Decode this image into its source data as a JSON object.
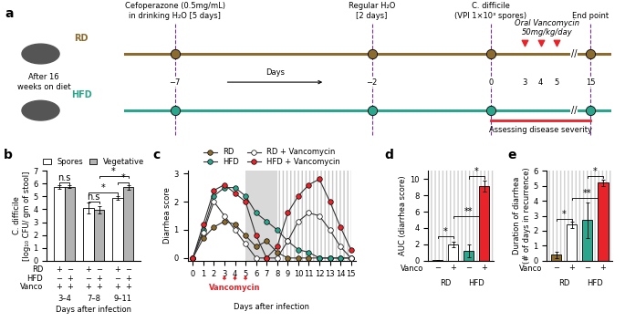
{
  "panel_a": {
    "label": "a",
    "groups": [
      {
        "name": "RD",
        "color": "#8c6b2f"
      },
      {
        "name": "HFD",
        "color": "#2ca58d"
      }
    ],
    "diet_note": "After 16\nweeks on diet",
    "timeline": [
      {
        "day": -7,
        "label": "−7"
      },
      {
        "day": -2,
        "label": "−2"
      },
      {
        "day": 0,
        "label": "0"
      },
      {
        "day": 3,
        "label": "3"
      },
      {
        "day": 4,
        "label": "4"
      },
      {
        "day": 5,
        "label": "5"
      },
      {
        "day": 15,
        "label": "15"
      }
    ],
    "milestones": [
      {
        "day": -7,
        "text": "Cefoperazone (0.5mg/mL)\nin drinking H₂O [5 days]"
      },
      {
        "day": -2,
        "text": "Regular H₂O\n[2 days]"
      },
      {
        "day": 0,
        "text": "C. difficile\n(VPI 1×10³ spores)"
      },
      {
        "day": 15,
        "text": "End point"
      }
    ],
    "treatment": {
      "text": "Oral Vancomycin\n50mg/kg/day",
      "days": [
        3,
        4,
        5
      ],
      "color": "#e8232a"
    },
    "axis_label": "Days",
    "break_mark": "//",
    "severity_text": "Assessing disease severity",
    "severity_color": "#e8232a"
  },
  "chart_data": [
    {
      "panel": "b",
      "type": "bar",
      "ylabel": "C. difficile\n[log₁₀ CFU/ gm of stool]",
      "xlabel": "Days after infection",
      "categories": [
        "3–4",
        "7–8",
        "9–11"
      ],
      "series": [
        {
          "name": "Spores",
          "color": "#ffffff",
          "values": [
            5.75,
            4.1,
            4.9
          ],
          "errors": [
            0.15,
            0.4,
            0.15
          ]
        },
        {
          "name": "Vegetative",
          "color": "#b3b3b3",
          "values": [
            5.75,
            3.95,
            5.7
          ],
          "errors": [
            0.1,
            0.3,
            0.15
          ]
        }
      ],
      "ylim": [
        0,
        7
      ],
      "yticks": [
        0,
        1,
        2,
        3,
        4,
        5,
        6,
        7
      ],
      "legend": "lower center",
      "conditions": [
        {
          "name": "RD",
          "values": [
            [
              "+",
              "−"
            ],
            [
              "+",
              "−"
            ],
            [
              "+",
              "−"
            ]
          ]
        },
        {
          "name": "HFD",
          "values": [
            [
              "−",
              "+"
            ],
            [
              "−",
              "+"
            ],
            [
              "−",
              "+"
            ]
          ]
        },
        {
          "name": "Vanco",
          "values": [
            [
              "+",
              "+"
            ],
            [
              "+",
              "+"
            ],
            [
              "+",
              "+"
            ]
          ]
        }
      ],
      "significance": [
        {
          "text": "n.s",
          "bars": [
            [
              0,
              0
            ],
            [
              0,
              1
            ]
          ],
          "y": 6.1
        },
        {
          "text": "n.s",
          "bars": [
            [
              1,
              0
            ],
            [
              1,
              1
            ]
          ],
          "y": 4.6
        },
        {
          "text": "*",
          "bars": [
            [
              1,
              0
            ],
            [
              2,
              0
            ]
          ],
          "y": 5.3
        },
        {
          "text": "*",
          "bars": [
            [
              2,
              0
            ],
            [
              2,
              1
            ]
          ],
          "y": 6.1
        },
        {
          "text": "*",
          "bars": [
            [
              1,
              1
            ],
            [
              2,
              1
            ]
          ],
          "y": 6.6
        }
      ]
    },
    {
      "panel": "c",
      "type": "line",
      "ylabel": "Diarrhea score",
      "xlabel": "Days after infection",
      "x": [
        0,
        1,
        2,
        3,
        4,
        5,
        6,
        7,
        8,
        9,
        10,
        11,
        12,
        13,
        14,
        15
      ],
      "series": [
        {
          "name": "RD",
          "color": "#8c6b2f",
          "marker": "o",
          "values": [
            0,
            0.7,
            1.1,
            1.3,
            1.2,
            0.8,
            0.4,
            0.6,
            0.2,
            0,
            0,
            0,
            0,
            0,
            0,
            0
          ]
        },
        {
          "name": "HFD",
          "color": "#2ca58d",
          "marker": "o",
          "values": [
            0,
            1.0,
            2.2,
            2.5,
            2.5,
            2.2,
            1.6,
            1.3,
            1.0,
            0.6,
            0.3,
            0.2,
            0,
            0,
            0,
            0
          ]
        },
        {
          "name": "RD + Vancomycin",
          "color": "#ffffff",
          "marker": "o",
          "values": [
            0,
            0.9,
            2.0,
            1.5,
            1.0,
            0.5,
            0,
            0,
            0,
            0.6,
            1.3,
            1.6,
            1.5,
            1.0,
            0.4,
            0
          ]
        },
        {
          "name": "HFD + Vancomycin",
          "color": "#e8232a",
          "marker": "o",
          "values": [
            0,
            1.2,
            2.4,
            2.6,
            2.3,
            2.0,
            0.8,
            0,
            0.4,
            1.6,
            2.2,
            2.6,
            2.8,
            2.0,
            1.1,
            0.3
          ]
        }
      ],
      "xlim": [
        -0.5,
        15.5
      ],
      "xticks": [
        0,
        1,
        2,
        3,
        4,
        5,
        6,
        7,
        8,
        9,
        10,
        11,
        12,
        13,
        14,
        15
      ],
      "ylim": [
        -0.1,
        3.1
      ],
      "yticks": [
        0,
        1,
        2,
        3
      ],
      "legend": "lower center",
      "shaded_span": [
        5,
        8
      ],
      "hatched_span": [
        8,
        15
      ],
      "treatment": {
        "text": "Vancomycin",
        "days": [
          3,
          4,
          5
        ],
        "color": "#e8232a"
      }
    },
    {
      "panel": "d",
      "type": "bar",
      "ylabel": "AUC (diarrhea score)",
      "categories": [
        "−",
        "+",
        "−",
        "+"
      ],
      "row_label": "Vanco",
      "group_labels": [
        "RD",
        "HFD"
      ],
      "values": [
        0.05,
        2.0,
        1.2,
        9.1
      ],
      "errors": [
        0.05,
        0.3,
        0.8,
        0.7
      ],
      "colors": [
        "#8c6b2f",
        "#ffffff",
        "#2ca58d",
        "#e8232a"
      ],
      "ylim": [
        0,
        11
      ],
      "yticks": [
        0,
        2,
        4,
        6,
        8,
        10
      ],
      "significance": [
        {
          "text": "*",
          "between": [
            0,
            1
          ],
          "y": 3.0
        },
        {
          "text": "**",
          "between": [
            1,
            3
          ],
          "y": 5.5
        },
        {
          "text": "*",
          "between": [
            2,
            3
          ],
          "y": 10.3
        }
      ]
    },
    {
      "panel": "e",
      "type": "bar",
      "ylabel": "Duration of diarrhea\n(# of days in recurrence)",
      "categories": [
        "−",
        "+",
        "−",
        "+"
      ],
      "row_label": "Vanco",
      "group_labels": [
        "RD",
        "HFD"
      ],
      "values": [
        0.4,
        2.4,
        2.7,
        5.2
      ],
      "errors": [
        0.2,
        0.2,
        1.2,
        0.2
      ],
      "colors": [
        "#8c6b2f",
        "#ffffff",
        "#2ca58d",
        "#e8232a"
      ],
      "ylim": [
        0,
        6
      ],
      "yticks": [
        0,
        1,
        2,
        3,
        4,
        5,
        6
      ],
      "significance": [
        {
          "text": "*",
          "between": [
            0,
            1
          ],
          "y": 2.8
        },
        {
          "text": "**",
          "between": [
            1,
            3
          ],
          "y": 4.2
        },
        {
          "text": "*",
          "between": [
            2,
            3
          ],
          "y": 5.65
        }
      ]
    }
  ]
}
